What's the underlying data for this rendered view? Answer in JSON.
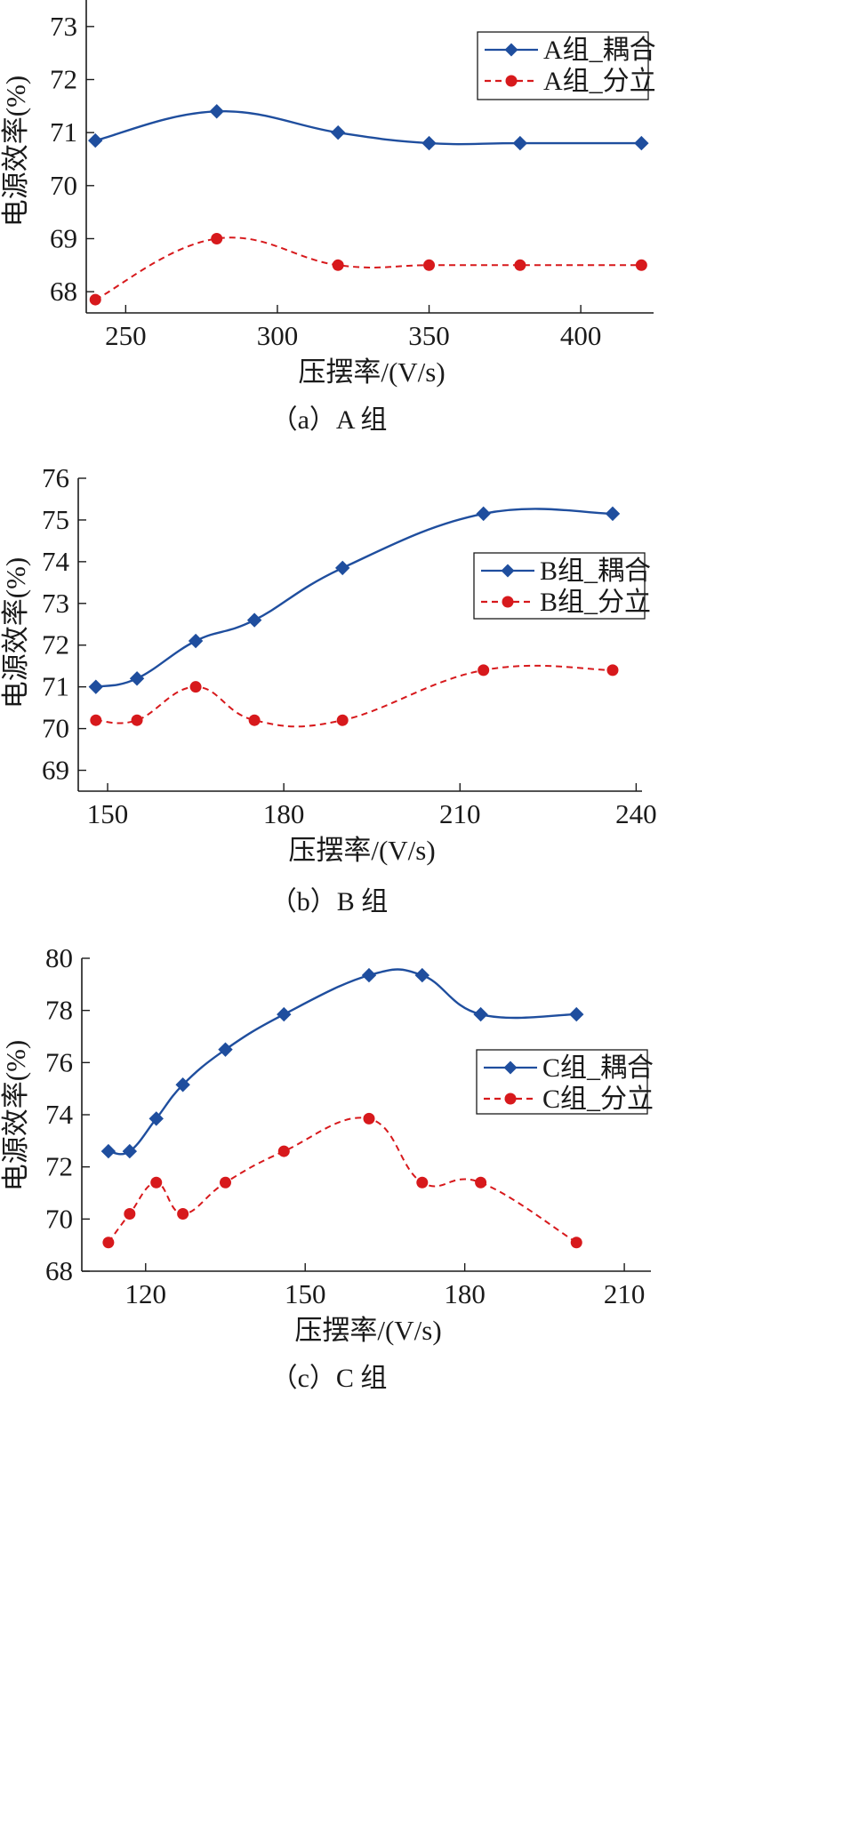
{
  "colors": {
    "coupled": "#1f4e9e",
    "separated": "#d7191c",
    "axis": "#1a1a1a"
  },
  "chart_data": [
    {
      "type": "line",
      "caption": "（a）A 组",
      "xlabel": "压摆率/(V/s)",
      "ylabel": "电源效率(%)",
      "xlim": [
        237,
        424
      ],
      "ylim": [
        67.6,
        73.5
      ],
      "xticks": [
        250,
        300,
        350,
        400
      ],
      "yticks": [
        68,
        69,
        70,
        71,
        72,
        73
      ],
      "legend_position": "top-right",
      "series": [
        {
          "name": "A组_耦合",
          "marker": "diamond",
          "style": "solid",
          "x": [
            240,
            280,
            320,
            350,
            380,
            420
          ],
          "y": [
            70.85,
            71.4,
            71.0,
            70.8,
            70.8,
            70.8
          ]
        },
        {
          "name": "A组_分立",
          "marker": "circle",
          "style": "dashed",
          "x": [
            240,
            280,
            320,
            350,
            380,
            420
          ],
          "y": [
            67.85,
            69.0,
            68.5,
            68.5,
            68.5,
            68.5
          ]
        }
      ]
    },
    {
      "type": "line",
      "caption": "（b）B 组",
      "xlabel": "压摆率/(V/s)",
      "ylabel": "电源效率(%)",
      "xlim": [
        145,
        241
      ],
      "ylim": [
        68.5,
        76
      ],
      "xticks": [
        150,
        180,
        210,
        240
      ],
      "yticks": [
        69,
        70,
        71,
        72,
        73,
        74,
        75,
        76
      ],
      "legend_position": "center-right",
      "series": [
        {
          "name": "B组_耦合",
          "marker": "diamond",
          "style": "solid",
          "x": [
            148,
            155,
            165,
            175,
            190,
            214,
            236
          ],
          "y": [
            71.0,
            71.2,
            72.1,
            72.6,
            73.85,
            75.15,
            75.15
          ]
        },
        {
          "name": "B组_分立",
          "marker": "circle",
          "style": "dashed",
          "x": [
            148,
            155,
            165,
            175,
            190,
            214,
            236
          ],
          "y": [
            70.2,
            70.2,
            71.0,
            70.2,
            70.2,
            71.4,
            71.4
          ]
        }
      ]
    },
    {
      "type": "line",
      "caption": "（c）C 组",
      "xlabel": "压摆率/(V/s)",
      "ylabel": "电源效率(%)",
      "xlim": [
        108,
        215
      ],
      "ylim": [
        68,
        80
      ],
      "xticks": [
        120,
        150,
        180,
        210
      ],
      "yticks": [
        68,
        70,
        72,
        74,
        76,
        78,
        80
      ],
      "legend_position": "center-right",
      "series": [
        {
          "name": "C组_耦合",
          "marker": "diamond",
          "style": "solid",
          "x": [
            113,
            117,
            122,
            127,
            135,
            146,
            162,
            172,
            183,
            201
          ],
          "y": [
            72.6,
            72.6,
            73.85,
            75.15,
            76.5,
            77.85,
            79.35,
            79.35,
            77.85,
            77.85
          ]
        },
        {
          "name": "C组_分立",
          "marker": "circle",
          "style": "dashed",
          "x": [
            113,
            117,
            122,
            127,
            135,
            146,
            162,
            172,
            183,
            201
          ],
          "y": [
            69.1,
            70.2,
            71.4,
            70.2,
            71.4,
            72.6,
            73.85,
            71.4,
            71.4,
            69.1
          ]
        }
      ]
    }
  ]
}
